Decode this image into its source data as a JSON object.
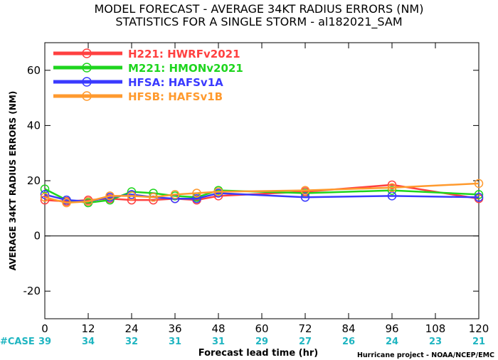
{
  "chart_data": {
    "type": "line",
    "title": "MODEL FORECAST - AVERAGE 34KT RADIUS ERRORS (NM)",
    "subtitle": "STATISTICS FOR A SINGLE STORM - al182021_SAM",
    "xlabel": "Forecast lead time (hr)",
    "ylabel": "AVERAGE 34KT RADIUS ERRORS (NM)",
    "xlim": [
      0,
      120
    ],
    "ylim": [
      -30,
      70
    ],
    "x_ticks": [
      "0",
      "12",
      "24",
      "36",
      "48",
      "60",
      "72",
      "84",
      "96",
      "108",
      "120"
    ],
    "y_ticks": [
      "-20",
      "0",
      "20",
      "40",
      "60"
    ],
    "x": [
      0,
      6,
      12,
      18,
      24,
      30,
      36,
      42,
      48,
      72,
      96,
      120
    ],
    "series": [
      {
        "name": "H221: HWRFv2021",
        "color": "#ff4040",
        "values": [
          13,
          12.5,
          13,
          13.5,
          13,
          13,
          13.5,
          13,
          14.5,
          16,
          18.5,
          13.5
        ]
      },
      {
        "name": "M221: HMONv2021",
        "color": "#1ed51e",
        "values": [
          17,
          13,
          12,
          13,
          16,
          15.5,
          14.5,
          14,
          16.5,
          15.5,
          16.5,
          15
        ]
      },
      {
        "name": "HFSA: HAFSv1A",
        "color": "#3a3aff",
        "values": [
          15,
          13,
          12.5,
          14,
          15,
          14,
          13.5,
          13.5,
          15.5,
          14,
          14.5,
          14
        ]
      },
      {
        "name": "HFSB: HAFSv1B",
        "color": "#ff9a2e",
        "values": [
          14,
          12,
          12.5,
          14.5,
          14.5,
          14,
          15,
          15.5,
          16,
          16.5,
          17.5,
          19
        ]
      }
    ],
    "case_label": "#CASE",
    "case_x": [
      0,
      12,
      24,
      36,
      48,
      60,
      72,
      84,
      96,
      108,
      120
    ],
    "case_counts": [
      "39",
      "34",
      "32",
      "31",
      "31",
      "29",
      "27",
      "26",
      "24",
      "23",
      "21"
    ],
    "legend_position": "top-left",
    "grid": false
  },
  "credit": "Hurricane project - NOAA/NCEP/EMC"
}
